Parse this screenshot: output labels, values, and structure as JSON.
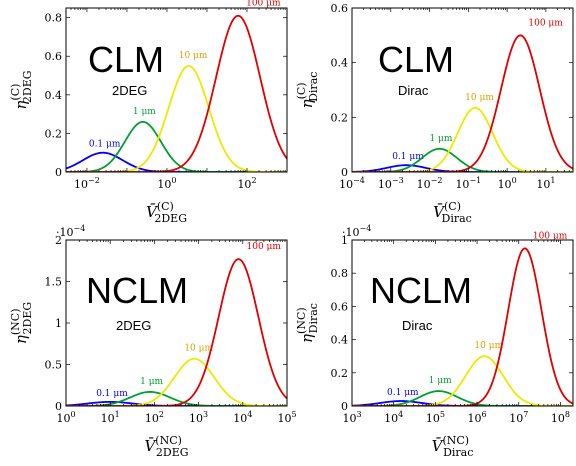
{
  "colors": {
    "0.1um": "#0000ff",
    "1um": "#00a030",
    "10um": "#f0e800",
    "100um": "#e00000",
    "label_10um": "#e0a000"
  },
  "chart_data": [
    {
      "type": "line",
      "title": "CLM",
      "subtitle": "2DEG",
      "xlabel": "V̄",
      "xlabel_sup": "(C)",
      "xlabel_sub": "2DEG",
      "ylabel": "η",
      "ylabel_sup": "(C)",
      "ylabel_sub": "2DEG",
      "xscale": "log",
      "xlim": [
        0.003,
        1000
      ],
      "ylim": [
        0,
        0.85
      ],
      "yticks": [
        0,
        0.2,
        0.4,
        0.6,
        0.8
      ],
      "ytick_labels": [
        "0",
        "0.2",
        "0.4",
        "0.6",
        "0.8"
      ],
      "xticks": [
        0.01,
        1,
        100
      ],
      "xtick_labels": [
        "10−2",
        "100",
        "102"
      ],
      "y_multiplier": "",
      "series": [
        {
          "name": "0.1 μm",
          "color_key": "0.1um",
          "peak_x": 0.025,
          "peak_y": 0.1,
          "sigma_dec": 0.5
        },
        {
          "name": "1 μm",
          "color_key": "1um",
          "peak_x": 0.25,
          "peak_y": 0.26,
          "sigma_dec": 0.45
        },
        {
          "name": "10 μm",
          "color_key": "10um",
          "peak_x": 3.5,
          "peak_y": 0.55,
          "sigma_dec": 0.5
        },
        {
          "name": "100 μm",
          "color_key": "100um",
          "peak_x": 60,
          "peak_y": 0.81,
          "sigma_dec": 0.55
        }
      ]
    },
    {
      "type": "line",
      "title": "CLM",
      "subtitle": "Dirac",
      "xlabel": "V̄",
      "xlabel_sup": "(C)",
      "xlabel_sub": "Dirac",
      "ylabel": "η",
      "ylabel_sup": "(C)",
      "ylabel_sub": "Dirac",
      "xscale": "log",
      "xlim": [
        0.0001,
        50
      ],
      "ylim": [
        0,
        0.6
      ],
      "yticks": [
        0,
        0.2,
        0.4,
        0.6
      ],
      "ytick_labels": [
        "0",
        "0.2",
        "0.4",
        "0.6"
      ],
      "xticks": [
        0.0001,
        0.001,
        0.01,
        0.1,
        1,
        10
      ],
      "xtick_labels": [
        "10−4",
        "10−3",
        "10−2",
        "10−1",
        "100",
        "101"
      ],
      "y_multiplier": "",
      "series": [
        {
          "name": "0.1 μm",
          "color_key": "0.1um",
          "peak_x": 0.0025,
          "peak_y": 0.025,
          "sigma_dec": 0.5
        },
        {
          "name": "1 μm",
          "color_key": "1um",
          "peak_x": 0.018,
          "peak_y": 0.085,
          "sigma_dec": 0.45
        },
        {
          "name": "10 μm",
          "color_key": "10um",
          "peak_x": 0.15,
          "peak_y": 0.235,
          "sigma_dec": 0.45
        },
        {
          "name": "100 μm",
          "color_key": "100um",
          "peak_x": 2.2,
          "peak_y": 0.5,
          "sigma_dec": 0.5
        }
      ]
    },
    {
      "type": "line",
      "title": "NCLM",
      "subtitle": "2DEG",
      "xlabel": "V̄",
      "xlabel_sup": "(NC)",
      "xlabel_sub": "2DEG",
      "ylabel": "η",
      "ylabel_sup": "(NC)",
      "ylabel_sub": "2DEG",
      "xscale": "log",
      "xlim": [
        1,
        100000
      ],
      "ylim": [
        0,
        2
      ],
      "yticks": [
        0,
        0.5,
        1,
        1.5,
        2
      ],
      "ytick_labels": [
        "0",
        "0.5",
        "1",
        "1.5",
        "2"
      ],
      "xticks": [
        1,
        10,
        100,
        1000,
        10000,
        100000
      ],
      "xtick_labels": [
        "100",
        "101",
        "102",
        "103",
        "104",
        "105"
      ],
      "y_multiplier": "·10−4",
      "series": [
        {
          "name": "0.1 μm",
          "color_key": "0.1um",
          "peak_x": 10,
          "peak_y": 0.05,
          "sigma_dec": 0.5
        },
        {
          "name": "1 μm",
          "color_key": "1um",
          "peak_x": 80,
          "peak_y": 0.17,
          "sigma_dec": 0.45
        },
        {
          "name": "10 μm",
          "color_key": "10um",
          "peak_x": 800,
          "peak_y": 0.57,
          "sigma_dec": 0.45
        },
        {
          "name": "100 μm",
          "color_key": "100um",
          "peak_x": 8000,
          "peak_y": 1.77,
          "sigma_dec": 0.45
        }
      ]
    },
    {
      "type": "line",
      "title": "NCLM",
      "subtitle": "Dirac",
      "xlabel": "V̄",
      "xlabel_sup": "(NC)",
      "xlabel_sub": "Dirac",
      "ylabel": "η",
      "ylabel_sup": "(NC)",
      "ylabel_sub": "Dirac",
      "xscale": "log",
      "xlim": [
        1000,
        200000000
      ],
      "ylim": [
        0,
        1
      ],
      "yticks": [
        0,
        0.2,
        0.4,
        0.6,
        0.8,
        1
      ],
      "ytick_labels": [
        "0",
        "0.2",
        "0.4",
        "0.6",
        "0.8",
        "1"
      ],
      "xticks": [
        1000,
        10000,
        100000,
        1000000,
        10000000,
        100000000
      ],
      "xtick_labels": [
        "103",
        "104",
        "105",
        "106",
        "107",
        "108"
      ],
      "y_multiplier": "·10−4",
      "series": [
        {
          "name": "0.1 μm",
          "color_key": "0.1um",
          "peak_x": 15000,
          "peak_y": 0.03,
          "sigma_dec": 0.5
        },
        {
          "name": "1 μm",
          "color_key": "1um",
          "peak_x": 120000,
          "peak_y": 0.09,
          "sigma_dec": 0.45
        },
        {
          "name": "10 μm",
          "color_key": "10um",
          "peak_x": 1500000,
          "peak_y": 0.3,
          "sigma_dec": 0.45
        },
        {
          "name": "100 μm",
          "color_key": "100um",
          "peak_x": 14000000,
          "peak_y": 0.95,
          "sigma_dec": 0.4
        }
      ]
    }
  ]
}
